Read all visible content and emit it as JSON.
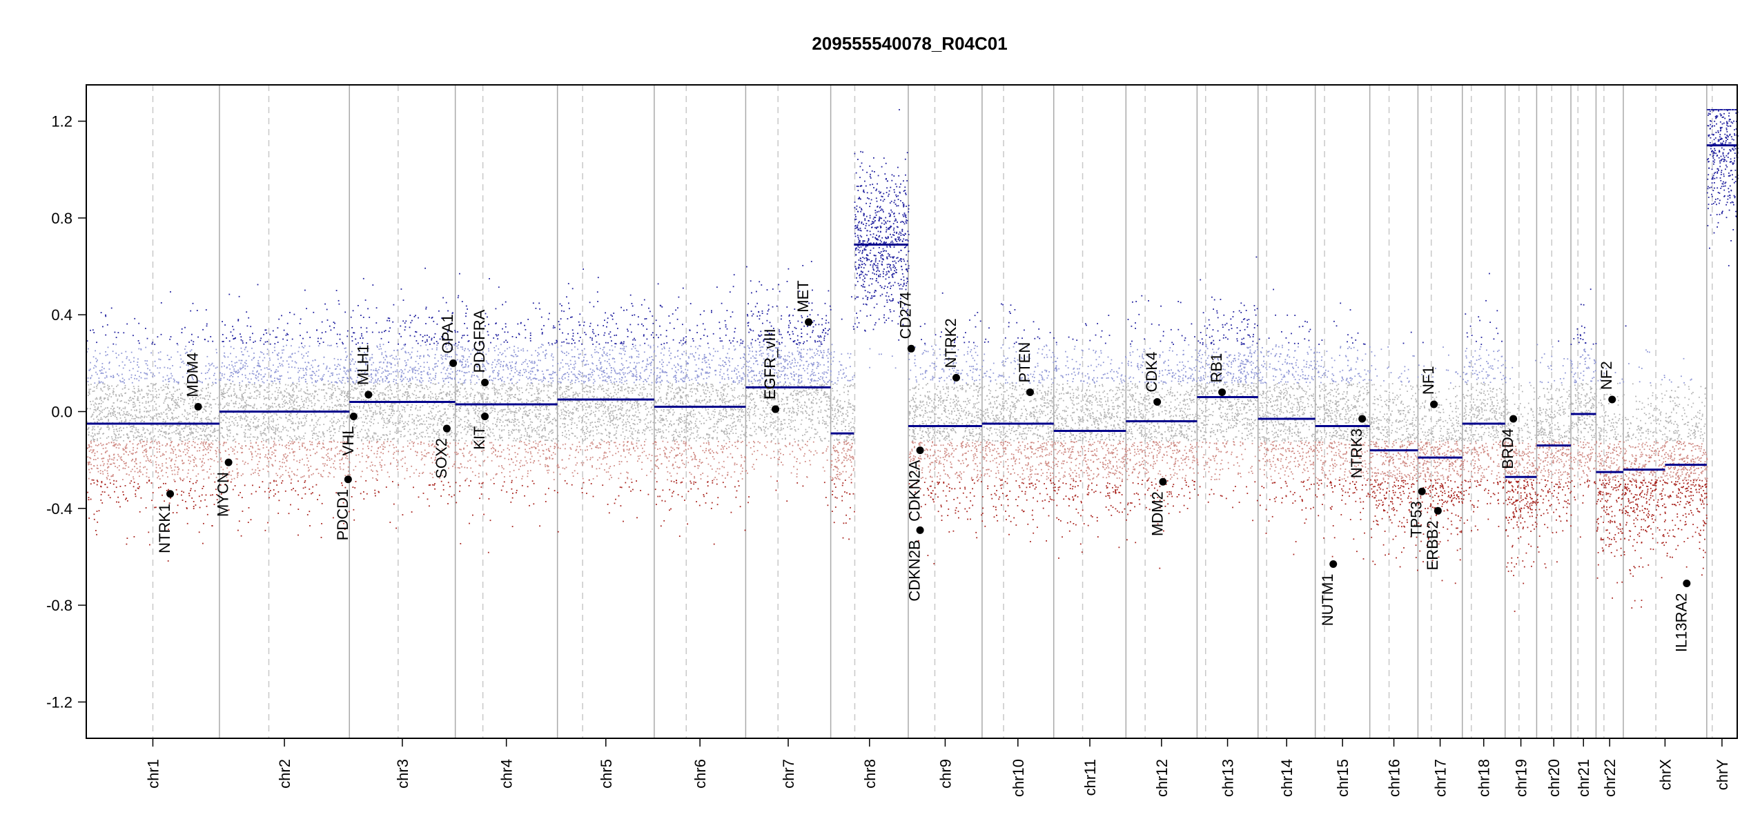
{
  "chart_data": {
    "type": "scatter",
    "title": "209555540078_R04C01",
    "xlabel": "",
    "ylabel": "",
    "ylim": [
      -1.35,
      1.35
    ],
    "yticks": [
      {
        "value": 1.2,
        "label": "1.2"
      },
      {
        "value": 0.8,
        "label": "0.8"
      },
      {
        "value": 0.4,
        "label": "0.4"
      },
      {
        "value": 0.0,
        "label": "0.0"
      },
      {
        "value": -0.4,
        "label": "-0.4"
      },
      {
        "value": -0.8,
        "label": "-0.8"
      },
      {
        "value": -1.2,
        "label": "-1.2"
      }
    ],
    "chromosomes": [
      {
        "name": "chr1",
        "size": 249,
        "centromere": 0.5
      },
      {
        "name": "chr2",
        "size": 243,
        "centromere": 0.38
      },
      {
        "name": "chr3",
        "size": 198,
        "centromere": 0.46
      },
      {
        "name": "chr4",
        "size": 191,
        "centromere": 0.27
      },
      {
        "name": "chr5",
        "size": 181,
        "centromere": 0.26
      },
      {
        "name": "chr6",
        "size": 171,
        "centromere": 0.35
      },
      {
        "name": "chr7",
        "size": 159,
        "centromere": 0.38
      },
      {
        "name": "chr8",
        "size": 145,
        "centromere": 0.31
      },
      {
        "name": "chr9",
        "size": 138,
        "centromere": 0.36
      },
      {
        "name": "chr10",
        "size": 134,
        "centromere": 0.3
      },
      {
        "name": "chr11",
        "size": 135,
        "centromere": 0.4
      },
      {
        "name": "chr12",
        "size": 133,
        "centromere": 0.27
      },
      {
        "name": "chr13",
        "size": 114,
        "centromere": 0.14
      },
      {
        "name": "chr14",
        "size": 107,
        "centromere": 0.15
      },
      {
        "name": "chr15",
        "size": 102,
        "centromere": 0.17
      },
      {
        "name": "chr16",
        "size": 90,
        "centromere": 0.4
      },
      {
        "name": "chr17",
        "size": 83,
        "centromere": 0.3
      },
      {
        "name": "chr18",
        "size": 80,
        "centromere": 0.21
      },
      {
        "name": "chr19",
        "size": 59,
        "centromere": 0.44
      },
      {
        "name": "chr20",
        "size": 64,
        "centromere": 0.44
      },
      {
        "name": "chr21",
        "size": 47,
        "centromere": 0.28
      },
      {
        "name": "chr22",
        "size": 51,
        "centromere": 0.29
      },
      {
        "name": "chrX",
        "size": 156,
        "centromere": 0.39
      },
      {
        "name": "chrY",
        "size": 57,
        "centromere": 0.18
      }
    ],
    "segments": [
      {
        "chr": "chr1",
        "from": 0.0,
        "to": 1.0,
        "value": -0.05
      },
      {
        "chr": "chr2",
        "from": 0.0,
        "to": 1.0,
        "value": 0.0
      },
      {
        "chr": "chr3",
        "from": 0.0,
        "to": 1.0,
        "value": 0.04
      },
      {
        "chr": "chr4",
        "from": 0.0,
        "to": 1.0,
        "value": 0.03
      },
      {
        "chr": "chr5",
        "from": 0.0,
        "to": 1.0,
        "value": 0.05
      },
      {
        "chr": "chr6",
        "from": 0.0,
        "to": 1.0,
        "value": 0.02
      },
      {
        "chr": "chr7",
        "from": 0.0,
        "to": 1.0,
        "value": 0.1
      },
      {
        "chr": "chr8",
        "from": 0.0,
        "to": 0.3,
        "value": -0.09
      },
      {
        "chr": "chr8",
        "from": 0.3,
        "to": 1.0,
        "value": 0.69
      },
      {
        "chr": "chr9",
        "from": 0.0,
        "to": 1.0,
        "value": -0.06
      },
      {
        "chr": "chr10",
        "from": 0.0,
        "to": 1.0,
        "value": -0.05
      },
      {
        "chr": "chr11",
        "from": 0.0,
        "to": 1.0,
        "value": -0.08
      },
      {
        "chr": "chr12",
        "from": 0.0,
        "to": 1.0,
        "value": -0.04
      },
      {
        "chr": "chr13",
        "from": 0.0,
        "to": 1.0,
        "value": 0.06
      },
      {
        "chr": "chr14",
        "from": 0.0,
        "to": 1.0,
        "value": -0.03
      },
      {
        "chr": "chr15",
        "from": 0.0,
        "to": 1.0,
        "value": -0.06
      },
      {
        "chr": "chr16",
        "from": 0.0,
        "to": 1.0,
        "value": -0.16
      },
      {
        "chr": "chr17",
        "from": 0.0,
        "to": 1.0,
        "value": -0.19
      },
      {
        "chr": "chr18",
        "from": 0.0,
        "to": 1.0,
        "value": -0.05
      },
      {
        "chr": "chr19",
        "from": 0.0,
        "to": 1.0,
        "value": -0.27
      },
      {
        "chr": "chr20",
        "from": 0.0,
        "to": 1.0,
        "value": -0.14
      },
      {
        "chr": "chr21",
        "from": 0.0,
        "to": 1.0,
        "value": -0.01
      },
      {
        "chr": "chr22",
        "from": 0.0,
        "to": 1.0,
        "value": -0.25
      },
      {
        "chrX_note": "",
        "chr": "chrX",
        "from": 0.0,
        "to": 0.5,
        "value": -0.24
      },
      {
        "chr": "chrX",
        "from": 0.5,
        "to": 1.0,
        "value": -0.22
      },
      {
        "chr": "chrY",
        "from": 0.0,
        "to": 1.0,
        "value": 1.1
      }
    ],
    "genes": [
      {
        "name": "NTRK1",
        "chr": "chr1",
        "pos": 0.63,
        "value": -0.34,
        "label_side": "below"
      },
      {
        "name": "MDM4",
        "chr": "chr1",
        "pos": 0.84,
        "value": 0.02,
        "label_side": "above"
      },
      {
        "name": "MYCN",
        "chr": "chr2",
        "pos": 0.07,
        "value": -0.21,
        "label_side": "below"
      },
      {
        "name": "PDCD1",
        "chr": "chr2",
        "pos": 0.99,
        "value": -0.28,
        "label_side": "below"
      },
      {
        "name": "VHL",
        "chr": "chr3",
        "pos": 0.04,
        "value": -0.02,
        "label_side": "below"
      },
      {
        "name": "MLH1",
        "chr": "chr3",
        "pos": 0.18,
        "value": 0.07,
        "label_side": "above"
      },
      {
        "name": "SOX2",
        "chr": "chr3",
        "pos": 0.92,
        "value": -0.07,
        "label_side": "below"
      },
      {
        "name": "OPA1",
        "chr": "chr3",
        "pos": 0.98,
        "value": 0.2,
        "label_side": "above"
      },
      {
        "name": "PDGFRA",
        "chr": "chr4",
        "pos": 0.29,
        "value": 0.12,
        "label_side": "above"
      },
      {
        "name": "KIT",
        "chr": "chr4",
        "pos": 0.29,
        "value": -0.02,
        "label_side": "below"
      },
      {
        "name": "EGFR",
        "chr": "chr7",
        "pos": 0.35,
        "value": 0.01,
        "label_side": "above"
      },
      {
        "name": "EGFR_vIII",
        "chr": "chr7",
        "pos": 0.35,
        "value": 0.01,
        "label_side": "above"
      },
      {
        "name": "MET",
        "chr": "chr7",
        "pos": 0.74,
        "value": 0.37,
        "label_side": "above"
      },
      {
        "name": "CD274",
        "chr": "chr9",
        "pos": 0.04,
        "value": 0.26,
        "label_side": "above"
      },
      {
        "name": "CDKN2A",
        "chr": "chr9",
        "pos": 0.16,
        "value": -0.16,
        "label_side": "below"
      },
      {
        "name": "CDKN2B",
        "chr": "chr9",
        "pos": 0.16,
        "value": -0.49,
        "label_side": "below"
      },
      {
        "name": "NTRK2",
        "chr": "chr9",
        "pos": 0.65,
        "value": 0.14,
        "label_side": "above"
      },
      {
        "name": "PTEN",
        "chr": "chr10",
        "pos": 0.67,
        "value": 0.08,
        "label_side": "above"
      },
      {
        "name": "CDK4",
        "chr": "chr12",
        "pos": 0.44,
        "value": 0.04,
        "label_side": "above"
      },
      {
        "name": "MDM2",
        "chr": "chr12",
        "pos": 0.52,
        "value": -0.29,
        "label_side": "below"
      },
      {
        "name": "RB1",
        "chr": "chr13",
        "pos": 0.41,
        "value": 0.08,
        "label_side": "above"
      },
      {
        "name": "NUTM1",
        "chr": "chr15",
        "pos": 0.33,
        "value": -0.63,
        "label_side": "below"
      },
      {
        "name": "NTRK3",
        "chr": "chr15",
        "pos": 0.86,
        "value": -0.03,
        "label_side": "below"
      },
      {
        "name": "TP53",
        "chr": "chr17",
        "pos": 0.09,
        "value": -0.33,
        "label_side": "below"
      },
      {
        "name": "NF1",
        "chr": "chr17",
        "pos": 0.36,
        "value": 0.03,
        "label_side": "above"
      },
      {
        "name": "ERBB2",
        "chr": "chr17",
        "pos": 0.45,
        "value": -0.41,
        "label_side": "below"
      },
      {
        "name": "BRD4",
        "chr": "chr19",
        "pos": 0.26,
        "value": -0.03,
        "label_side": "below"
      },
      {
        "name": "NF2",
        "chr": "chr22",
        "pos": 0.59,
        "value": 0.05,
        "label_side": "above"
      },
      {
        "name": "IL13RA2",
        "chr": "chrX",
        "pos": 0.76,
        "value": -0.71,
        "label_side": "below"
      }
    ],
    "colors": {
      "gain": "#1f1f9e",
      "gain_light": "#8f97d6",
      "loss": "#a8231d",
      "loss_light": "#cf8a84",
      "neutral": "#b4b4b4",
      "segment": "#00008b",
      "chr_border": "#a9a9a9",
      "centromere": "#c8c8c8",
      "gene_point": "#000000"
    },
    "grid": false,
    "legend": "none"
  }
}
